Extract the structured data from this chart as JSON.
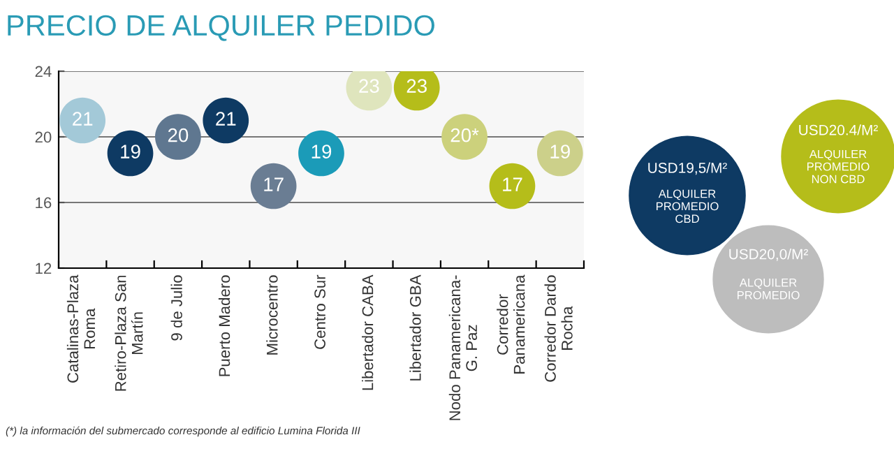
{
  "chart_data": [
    {
      "type": "scatter",
      "title": "PRECIO DE ALQUILER PEDIDO",
      "categories": [
        "Catalinas-Plaza\nRoma",
        "Retiro-Plaza San\nMartín",
        "9 de Julio",
        "Puerto Madero",
        "Microcentro",
        "Centro Sur",
        "Libertador CABA",
        "Libertador GBA",
        "Nodo Panamericana-\nG. Paz",
        "Corredor\nPanamericana",
        "Corredor Dardo\nRocha"
      ],
      "values": [
        21,
        19,
        20,
        21,
        17,
        19,
        23,
        23,
        20,
        17,
        19
      ],
      "value_labels": [
        "21",
        "19",
        "20",
        "21",
        "17",
        "19",
        "23",
        "23",
        "20*",
        "17",
        "19"
      ],
      "colors": [
        "#a3c9d8",
        "#0e3a63",
        "#5f7790",
        "#0e3a63",
        "#6a7d93",
        "#1b9bb8",
        "#dfe5bd",
        "#b5bd1a",
        "#ccd17c",
        "#b5bd1a",
        "#ccd08a"
      ],
      "ylim": [
        12,
        24
      ],
      "yticks": [
        12,
        16,
        20,
        24
      ],
      "grid": "y",
      "marker": "circle",
      "annotations": [
        "(*) la información del submercado corresponde al edificio Lumina Florida III"
      ]
    },
    {
      "type": "other",
      "annotations": [
        "USD19,5/M²\nALQUILER\nPROMEDIO\nCBD",
        "USD20.4/M²\nALQUILER\nPROMEDIO\nNON CBD",
        "USD20,0/M²\nALQUILER\nPROMEDIO"
      ],
      "colors": [
        "#0e3a63",
        "#b5bd1a",
        "#bdbdbd"
      ]
    }
  ]
}
